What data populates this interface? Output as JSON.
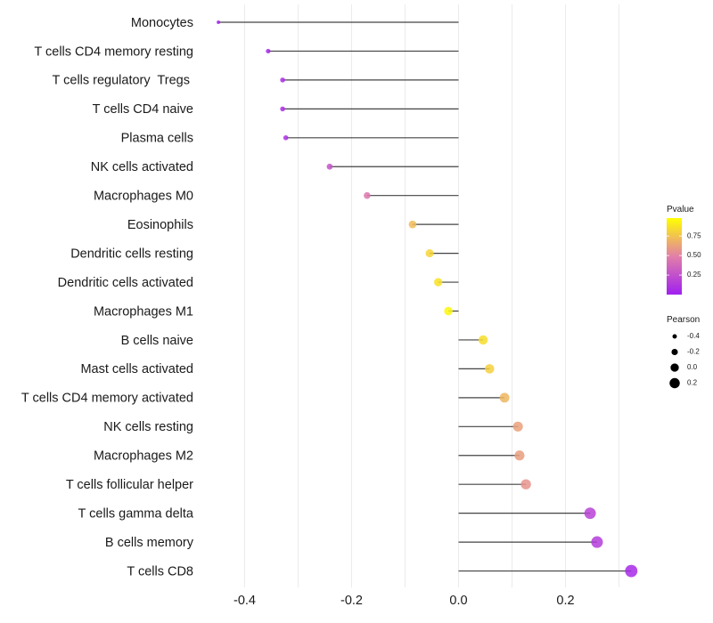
{
  "chart_data": {
    "type": "lollipop",
    "title": "",
    "xlabel": "",
    "ylabel": "",
    "xlim": [
      -0.47,
      0.345
    ],
    "x_ticks": [
      -0.4,
      -0.2,
      0.0,
      0.2
    ],
    "x_tick_labels": [
      "-0.4",
      "-0.2",
      "0.0",
      "0.2"
    ],
    "grid": true,
    "categories": [
      "Monocytes",
      "T cells CD4 memory resting",
      "T cells regulatory  Tregs ",
      "T cells CD4 naive",
      "Plasma cells",
      "NK cells activated",
      "Macrophages M0",
      "Eosinophils",
      "Dendritic cells resting",
      "Dendritic cells activated",
      "Macrophages M1",
      "B cells naive",
      "Mast cells activated",
      "T cells CD4 memory activated",
      "NK cells resting",
      "Macrophages M2",
      "T cells follicular helper",
      "T cells gamma delta",
      "B cells memory",
      "T cells CD8"
    ],
    "pearson": [
      -0.449,
      -0.356,
      -0.329,
      -0.329,
      -0.323,
      -0.241,
      -0.171,
      -0.086,
      -0.054,
      -0.038,
      -0.019,
      0.046,
      0.058,
      0.086,
      0.111,
      0.114,
      0.126,
      0.246,
      0.259,
      0.323
    ],
    "pvalue": [
      0.02,
      0.04,
      0.08,
      0.08,
      0.09,
      0.27,
      0.45,
      0.72,
      0.82,
      0.87,
      0.95,
      0.85,
      0.8,
      0.7,
      0.62,
      0.61,
      0.57,
      0.18,
      0.15,
      0.05
    ],
    "legend": {
      "color": {
        "title": "Pvalue",
        "ticks": [
          0.25,
          0.5,
          0.75
        ],
        "tick_labels": [
          "0.25",
          "0.50",
          "0.75"
        ],
        "range": [
          0.0,
          0.98
        ],
        "low_color": "#a020f0",
        "mid_color": "#e27fa8",
        "high_color": "#ffff00",
        "position": "right"
      },
      "size": {
        "title": "Pearson",
        "values": [
          -0.4,
          -0.2,
          0.0,
          0.2
        ],
        "labels": [
          "-0.4",
          "-0.2",
          "0.0",
          "0.2"
        ],
        "position": "right"
      }
    }
  }
}
